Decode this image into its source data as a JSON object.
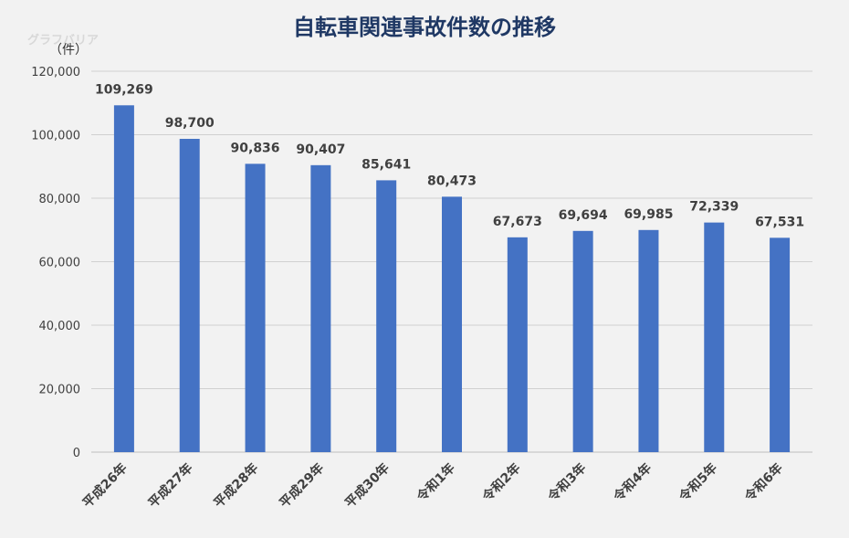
{
  "watermark": "グラフバリア",
  "chart_data": {
    "type": "bar",
    "title": "自転車関連事故件数の推移",
    "ylabel": "（件）",
    "xlabel": "",
    "categories": [
      "平成26年",
      "平成27年",
      "平成28年",
      "平成29年",
      "平成30年",
      "令和1年",
      "令和2年",
      "令和3年",
      "令和4年",
      "令和5年",
      "令和6年"
    ],
    "values": [
      109269,
      98700,
      90836,
      90407,
      85641,
      80473,
      67673,
      69694,
      69985,
      72339,
      67531
    ],
    "ylim": [
      0,
      120000
    ],
    "yticks": [
      0,
      20000,
      40000,
      60000,
      80000,
      100000,
      120000
    ],
    "grid": true,
    "data_labels": true,
    "bar_color": "#4472c4"
  }
}
